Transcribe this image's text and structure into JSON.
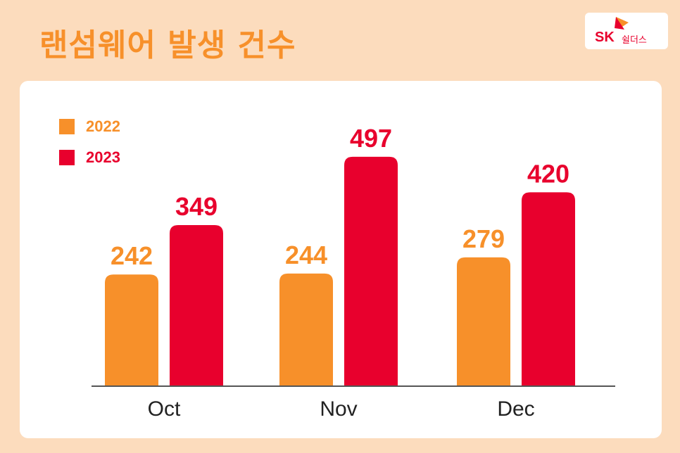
{
  "title": "랜섬웨어 발생 건수",
  "logo": {
    "brand": "SK",
    "name": "쉴더스"
  },
  "colors": {
    "series_2022": "#f7902a",
    "series_2023": "#e8002d",
    "background": "#fcdcbd",
    "title": "#f7902a"
  },
  "chart_data": {
    "type": "bar",
    "categories": [
      "Oct",
      "Nov",
      "Dec"
    ],
    "series": [
      {
        "name": "2022",
        "values": [
          242,
          244,
          279
        ]
      },
      {
        "name": "2023",
        "values": [
          349,
          497,
          420
        ]
      }
    ],
    "title": "랜섬웨어 발생 건수",
    "xlabel": "",
    "ylabel": "",
    "ylim": [
      0,
      560
    ],
    "grid": false,
    "legend": "top-left"
  }
}
